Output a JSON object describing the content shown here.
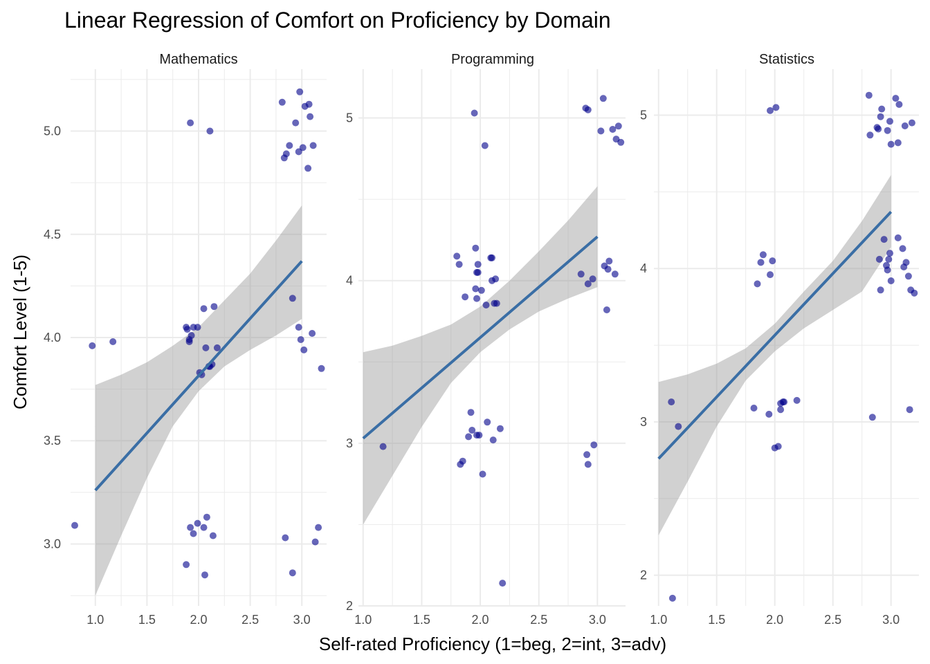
{
  "chart_data": {
    "type": "scatter",
    "title": "Linear Regression of Comfort on Proficiency by Domain",
    "xlabel": "Self-rated Proficiency (1=beg, 2=int, 3=adv)",
    "ylabel": "Comfort Level (1-5)",
    "grid": true,
    "colors": {
      "points": "#00008b",
      "line": "#3a6ea5",
      "band": "#999999",
      "grid": "#ebebeb"
    },
    "panels": [
      {
        "name": "Mathematics",
        "xlim": [
          0.76,
          3.24
        ],
        "ylim": [
          2.7,
          5.3
        ],
        "x_ticks": [
          "1.0",
          "1.5",
          "2.0",
          "2.5",
          "3.0"
        ],
        "y_ticks": [
          "3.0",
          "3.5",
          "4.0",
          "4.5",
          "5.0"
        ],
        "y_tick_values": [
          3.0,
          3.5,
          4.0,
          4.5,
          5.0
        ],
        "fit": {
          "x": [
            1.0,
            3.0
          ],
          "y": [
            3.26,
            4.37
          ]
        },
        "band": {
          "x": [
            1.0,
            1.25,
            1.5,
            1.75,
            2.0,
            2.25,
            2.5,
            2.75,
            3.0
          ],
          "lower": [
            2.75,
            3.04,
            3.32,
            3.57,
            3.74,
            3.86,
            3.94,
            4.01,
            4.09
          ],
          "upper": [
            3.77,
            3.82,
            3.88,
            3.96,
            4.05,
            4.18,
            4.31,
            4.47,
            4.64
          ]
        },
        "points": {
          "x": [
            0.8,
            0.97,
            1.17,
            1.88,
            1.89,
            1.91,
            1.91,
            1.93,
            1.95,
            1.99,
            2.01,
            2.03,
            2.05,
            2.07,
            2.1,
            2.11,
            2.13,
            2.15,
            2.18,
            1.88,
            1.92,
            1.95,
            1.99,
            2.05,
            2.06,
            2.08,
            2.14,
            1.92,
            2.11,
            2.81,
            2.83,
            2.85,
            2.88,
            2.94,
            2.97,
            2.98,
            3.01,
            3.03,
            3.06,
            3.07,
            3.08,
            3.11,
            2.91,
            2.97,
            2.99,
            3.02,
            3.1,
            3.19,
            2.84,
            2.91,
            3.13,
            3.16
          ],
          "y": [
            3.09,
            3.96,
            3.98,
            4.05,
            4.04,
            3.98,
            3.99,
            4.01,
            4.05,
            4.05,
            3.83,
            3.82,
            4.14,
            3.95,
            3.86,
            3.86,
            3.87,
            4.15,
            3.95,
            2.9,
            3.08,
            3.05,
            3.1,
            3.08,
            2.85,
            3.13,
            3.04,
            5.04,
            5.0,
            5.14,
            4.87,
            4.89,
            4.93,
            5.04,
            4.9,
            5.19,
            4.92,
            5.12,
            4.82,
            5.13,
            5.07,
            4.93,
            4.19,
            4.05,
            3.99,
            3.94,
            4.02,
            3.85,
            3.03,
            2.86,
            3.01,
            3.08
          ]
        }
      },
      {
        "name": "Programming",
        "xlim": [
          0.96,
          3.24
        ],
        "ylim": [
          2.0,
          5.3
        ],
        "x_ticks": [
          "1.0",
          "1.5",
          "2.0",
          "2.5",
          "3.0"
        ],
        "y_ticks": [
          "2",
          "3",
          "4",
          "5"
        ],
        "y_tick_values": [
          2,
          3,
          4,
          5
        ],
        "fit": {
          "x": [
            1.0,
            3.0
          ],
          "y": [
            3.03,
            4.27
          ]
        },
        "band": {
          "x": [
            1.0,
            1.25,
            1.5,
            1.75,
            2.0,
            2.25,
            2.5,
            2.75,
            3.0
          ],
          "lower": [
            2.5,
            2.8,
            3.1,
            3.37,
            3.56,
            3.7,
            3.81,
            3.89,
            3.96
          ],
          "upper": [
            3.56,
            3.6,
            3.66,
            3.73,
            3.84,
            4.0,
            4.18,
            4.37,
            4.58
          ]
        },
        "points": {
          "x": [
            1.17,
            1.8,
            1.82,
            1.87,
            1.96,
            1.96,
            1.97,
            1.97,
            1.98,
            1.98,
            2.01,
            2.05,
            2.09,
            2.1,
            2.1,
            2.12,
            2.13,
            2.14,
            1.83,
            1.85,
            1.9,
            1.92,
            1.93,
            1.97,
            1.99,
            2.02,
            2.06,
            2.11,
            2.17,
            2.19,
            1.95,
            2.04,
            2.9,
            2.92,
            3.03,
            3.05,
            3.13,
            3.16,
            3.18,
            3.2,
            2.86,
            2.92,
            2.96,
            3.06,
            3.08,
            3.09,
            3.1,
            3.15,
            2.91,
            2.92,
            2.97
          ],
          "y": [
            2.98,
            4.15,
            4.1,
            3.9,
            4.2,
            3.95,
            3.89,
            4.05,
            4.1,
            4.05,
            3.94,
            3.85,
            4.14,
            4.14,
            4.0,
            3.86,
            4.01,
            3.86,
            2.87,
            2.89,
            3.04,
            3.19,
            3.08,
            3.05,
            3.05,
            2.81,
            3.13,
            3.02,
            3.09,
            2.14,
            5.03,
            4.83,
            5.06,
            5.05,
            4.92,
            5.12,
            4.93,
            4.87,
            4.95,
            4.85,
            4.04,
            3.98,
            4.01,
            4.09,
            3.82,
            4.07,
            4.12,
            4.04,
            2.93,
            2.87,
            2.99
          ]
        }
      },
      {
        "name": "Statistics",
        "xlim": [
          0.96,
          3.24
        ],
        "ylim": [
          1.8,
          5.3
        ],
        "x_ticks": [
          "1.0",
          "1.5",
          "2.0",
          "2.5",
          "3.0"
        ],
        "y_ticks": [
          "2",
          "3",
          "4",
          "5"
        ],
        "y_tick_values": [
          2,
          3,
          4,
          5
        ],
        "fit": {
          "x": [
            1.0,
            3.0
          ],
          "y": [
            2.76,
            4.37
          ]
        },
        "band": {
          "x": [
            1.0,
            1.25,
            1.5,
            1.75,
            2.0,
            2.25,
            2.5,
            2.75,
            3.0
          ],
          "lower": [
            2.26,
            2.61,
            2.97,
            3.27,
            3.46,
            3.61,
            3.73,
            3.85,
            4.14
          ],
          "upper": [
            3.26,
            3.31,
            3.38,
            3.48,
            3.64,
            3.85,
            4.05,
            4.31,
            4.61
          ]
        },
        "points": {
          "x": [
            1.11,
            1.12,
            1.17,
            1.82,
            1.95,
            2.0,
            2.03,
            2.05,
            2.05,
            2.07,
            2.08,
            2.19,
            1.85,
            1.88,
            1.9,
            1.96,
            1.98,
            1.96,
            2.01,
            2.81,
            2.82,
            2.88,
            2.89,
            2.91,
            2.92,
            2.97,
            2.99,
            3.0,
            3.04,
            3.06,
            3.07,
            3.12,
            3.18,
            2.9,
            2.91,
            2.94,
            2.96,
            2.97,
            2.98,
            2.99,
            3.0,
            3.06,
            3.1,
            3.11,
            3.13,
            3.15,
            3.17,
            3.2,
            2.84,
            3.16
          ],
          "y": [
            3.13,
            1.85,
            2.97,
            3.09,
            3.05,
            2.83,
            2.84,
            3.08,
            3.12,
            3.13,
            3.13,
            3.14,
            3.9,
            4.04,
            4.09,
            3.96,
            4.05,
            5.03,
            5.05,
            5.13,
            4.87,
            4.92,
            4.91,
            4.99,
            5.04,
            4.9,
            4.96,
            4.81,
            5.11,
            4.82,
            5.07,
            4.93,
            4.95,
            4.06,
            3.86,
            4.19,
            4.02,
            3.99,
            4.06,
            4.1,
            3.92,
            4.2,
            4.13,
            4.01,
            4.04,
            3.95,
            3.86,
            3.84,
            3.03,
            3.08
          ]
        }
      }
    ]
  }
}
